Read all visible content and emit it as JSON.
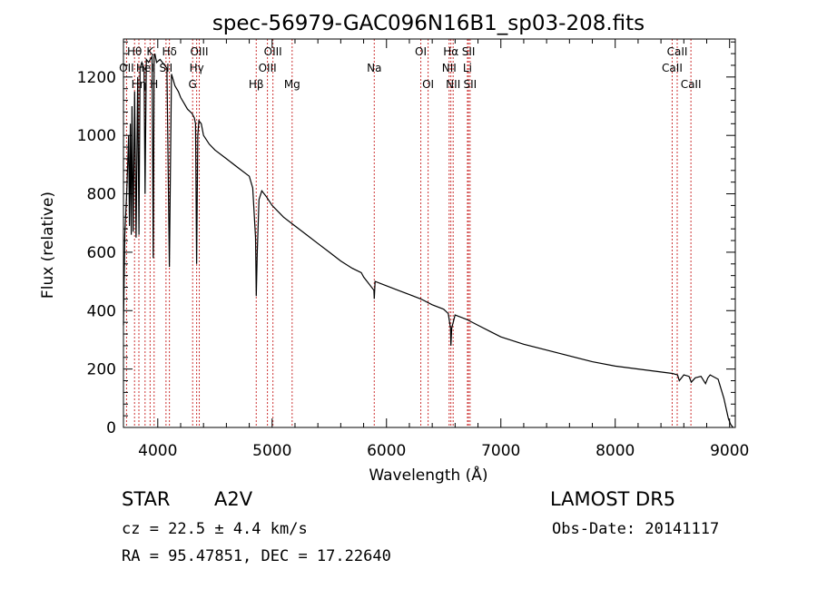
{
  "chart_data": {
    "type": "line",
    "title": "spec-56979-GAC096N16B1_sp03-208.fits",
    "xlabel": "Wavelength (Å)",
    "ylabel": "Flux (relative)",
    "xlim": [
      3700,
      9050
    ],
    "ylim": [
      0,
      1330
    ],
    "xticks": [
      4000,
      5000,
      6000,
      7000,
      8000,
      9000
    ],
    "yticks": [
      0,
      200,
      400,
      600,
      800,
      1000,
      1200
    ],
    "grid": false,
    "series": [
      {
        "x": [
          3700,
          3712,
          3730,
          3745,
          3752,
          3760,
          3768,
          3775,
          3785,
          3798,
          3810,
          3825,
          3836,
          3845,
          3860,
          3880,
          3889,
          3900,
          3920,
          3950,
          3960,
          3968,
          3975,
          3990,
          4020,
          4060,
          4080,
          4102,
          4120,
          4150,
          4180,
          4200,
          4230,
          4260,
          4300,
          4320,
          4330,
          4340,
          4350,
          4360,
          4380,
          4400,
          4450,
          4500,
          4600,
          4700,
          4800,
          4830,
          4855,
          4861,
          4870,
          4885,
          4910,
          4950,
          5000,
          5100,
          5200,
          5300,
          5400,
          5500,
          5600,
          5700,
          5780,
          5800,
          5890,
          5893,
          5900,
          6000,
          6100,
          6200,
          6300,
          6400,
          6500,
          6540,
          6560,
          6563,
          6570,
          6600,
          6700,
          6800,
          6900,
          7000,
          7200,
          7500,
          7800,
          8000,
          8200,
          8400,
          8500,
          8545,
          8560,
          8600,
          8645,
          8665,
          8700,
          8750,
          8790,
          8810,
          8830,
          8900,
          8950,
          8990,
          9010,
          9030
        ],
        "y": [
          350,
          660,
          820,
          1000,
          690,
          1040,
          660,
          1100,
          670,
          1150,
          650,
          1200,
          660,
          1230,
          1250,
          1230,
          800,
          1260,
          1250,
          1270,
          580,
          1270,
          1280,
          1250,
          1260,
          1240,
          1230,
          550,
          1210,
          1170,
          1150,
          1130,
          1110,
          1090,
          1075,
          1060,
          1040,
          560,
          1000,
          1050,
          1040,
          1000,
          970,
          950,
          920,
          890,
          860,
          820,
          650,
          450,
          600,
          780,
          810,
          790,
          760,
          720,
          690,
          660,
          630,
          600,
          570,
          545,
          530,
          515,
          470,
          440,
          500,
          485,
          470,
          455,
          440,
          420,
          405,
          390,
          340,
          280,
          340,
          385,
          370,
          350,
          330,
          310,
          285,
          255,
          225,
          210,
          200,
          190,
          185,
          180,
          160,
          180,
          175,
          155,
          170,
          175,
          150,
          170,
          180,
          165,
          100,
          30,
          10,
          0
        ]
      }
    ],
    "line_markers": [
      {
        "name": "Hθ",
        "wavelength": 3797,
        "row": 0
      },
      {
        "name": "OII",
        "wavelength": 3727,
        "row": 1
      },
      {
        "name": "Hη",
        "wavelength": 3835,
        "row": 2
      },
      {
        "name": "HeI",
        "wavelength": 3889,
        "row": 1
      },
      {
        "name": "K",
        "wavelength": 3933,
        "row": 0
      },
      {
        "name": "H",
        "wavelength": 3968,
        "row": 2
      },
      {
        "name": "Hδ",
        "wavelength": 4102,
        "row": 0
      },
      {
        "name": "SII",
        "wavelength": 4072,
        "row": 1
      },
      {
        "name": "OIII",
        "wavelength": 4363,
        "row": 0
      },
      {
        "name": "Hγ",
        "wavelength": 4340,
        "row": 1
      },
      {
        "name": "G",
        "wavelength": 4305,
        "row": 2
      },
      {
        "name": "Hβ",
        "wavelength": 4861,
        "row": 2
      },
      {
        "name": "OIII",
        "wavelength": 5007,
        "row": 0
      },
      {
        "name": "OIII",
        "wavelength": 4959,
        "row": 1
      },
      {
        "name": "Mg",
        "wavelength": 5175,
        "row": 2
      },
      {
        "name": "Na",
        "wavelength": 5893,
        "row": 1
      },
      {
        "name": "OI",
        "wavelength": 6300,
        "row": 0
      },
      {
        "name": "OI",
        "wavelength": 6364,
        "row": 2
      },
      {
        "name": "Hα",
        "wavelength": 6563,
        "row": 0
      },
      {
        "name": "NII",
        "wavelength": 6548,
        "row": 1
      },
      {
        "name": "NII",
        "wavelength": 6583,
        "row": 2
      },
      {
        "name": "SII",
        "wavelength": 6717,
        "row": 0
      },
      {
        "name": "Li",
        "wavelength": 6708,
        "row": 1
      },
      {
        "name": "SII",
        "wavelength": 6731,
        "row": 2
      },
      {
        "name": "CaII",
        "wavelength": 8542,
        "row": 0
      },
      {
        "name": "CaII",
        "wavelength": 8498,
        "row": 1
      },
      {
        "name": "CaII",
        "wavelength": 8662,
        "row": 2
      }
    ]
  },
  "info": {
    "class": "STAR",
    "subclass": "A2V",
    "survey": "LAMOST DR5",
    "cz": "cz = 22.5 ± 4.4 km/s",
    "obs_date": "Obs-Date: 20141117",
    "radec": "RA =  95.47851, DEC =  17.22640"
  },
  "colors": {
    "spectrum": "#000000",
    "line_marker": "#cc3333",
    "text": "#000000"
  }
}
